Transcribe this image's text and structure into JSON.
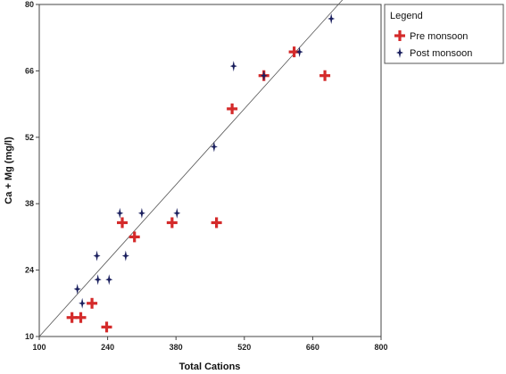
{
  "chart_data": {
    "type": "scatter",
    "title": "",
    "xlabel": "Total Cations",
    "ylabel": "Ca + Mg (mg/l)",
    "xlim": [
      100,
      800
    ],
    "ylim": [
      10,
      80
    ],
    "x_ticks": [
      100,
      240,
      380,
      520,
      660,
      800
    ],
    "y_ticks": [
      10,
      24,
      38,
      52,
      66,
      80
    ],
    "grid": false,
    "legend_position": "right-outside-top",
    "legend_title": "Legend",
    "trendline": {
      "x": [
        100,
        730
      ],
      "y": [
        10,
        82
      ]
    },
    "series": [
      {
        "name": "Pre monsoon",
        "marker": "plus",
        "color": "#d42a2a",
        "points": [
          {
            "x": 167,
            "y": 14
          },
          {
            "x": 185,
            "y": 14
          },
          {
            "x": 208,
            "y": 17
          },
          {
            "x": 238,
            "y": 12
          },
          {
            "x": 270,
            "y": 34
          },
          {
            "x": 295,
            "y": 31
          },
          {
            "x": 372,
            "y": 34
          },
          {
            "x": 463,
            "y": 34
          },
          {
            "x": 495,
            "y": 58
          },
          {
            "x": 560,
            "y": 65
          },
          {
            "x": 622,
            "y": 70
          },
          {
            "x": 685,
            "y": 65
          }
        ]
      },
      {
        "name": "Post monsoon",
        "marker": "star",
        "color": "#1a1f5e",
        "points": [
          {
            "x": 178,
            "y": 20
          },
          {
            "x": 188,
            "y": 17
          },
          {
            "x": 218,
            "y": 27
          },
          {
            "x": 220,
            "y": 22
          },
          {
            "x": 243,
            "y": 22
          },
          {
            "x": 265,
            "y": 36
          },
          {
            "x": 277,
            "y": 27
          },
          {
            "x": 310,
            "y": 36
          },
          {
            "x": 382,
            "y": 36
          },
          {
            "x": 458,
            "y": 50
          },
          {
            "x": 498,
            "y": 67
          },
          {
            "x": 560,
            "y": 65
          },
          {
            "x": 633,
            "y": 70
          },
          {
            "x": 698,
            "y": 77
          }
        ]
      }
    ]
  }
}
